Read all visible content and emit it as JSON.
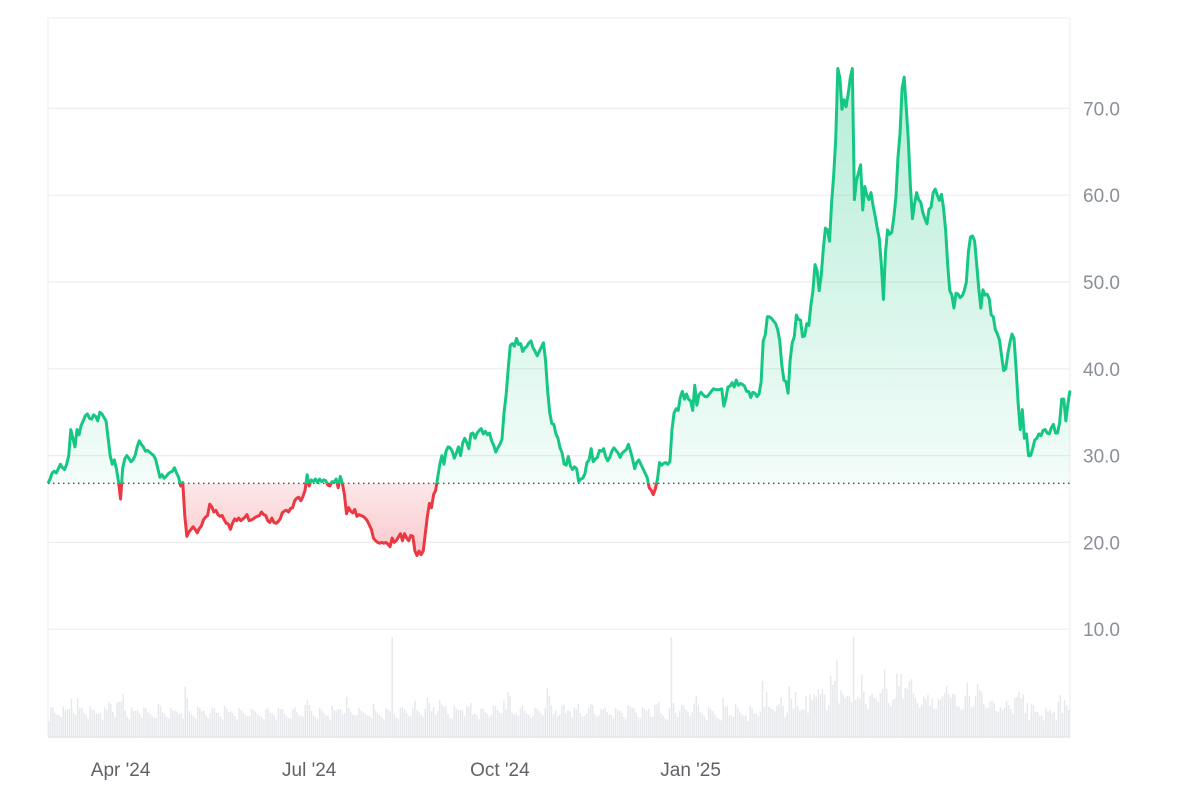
{
  "chart_data": {
    "type": "area",
    "title": "",
    "xlabel": "",
    "ylabel": "",
    "baseline": 26.8,
    "ylim": [
      0,
      80
    ],
    "y_ticks": [
      {
        "value": 10,
        "label": "10.0"
      },
      {
        "value": 20,
        "label": "20.0"
      },
      {
        "value": 30,
        "label": "30.0"
      },
      {
        "value": 40,
        "label": "40.0"
      },
      {
        "value": 50,
        "label": "50.0"
      },
      {
        "value": 60,
        "label": "60.0"
      },
      {
        "value": 70,
        "label": "70.0"
      }
    ],
    "x_ticks": [
      {
        "index": 35,
        "label": "Apr '24"
      },
      {
        "index": 126,
        "label": "Jul '24"
      },
      {
        "index": 218,
        "label": "Oct '24"
      },
      {
        "index": 310,
        "label": "Jan '25"
      }
    ],
    "colors": {
      "up": "#16c784",
      "down": "#ea3943",
      "baseline": "#555555",
      "grid": "#eeeeee",
      "volume": "#e6e8ec"
    },
    "series": [
      {
        "values": [
          26.8,
          27.3,
          28.0,
          28.2,
          28.0,
          28.5,
          29.0,
          28.6,
          28.4,
          29.0,
          30.0,
          33.0,
          32.0,
          31.0,
          33.0,
          32.4,
          33.5,
          34.0,
          34.6,
          34.8,
          34.3,
          34.2,
          34.7,
          34.5,
          34.0,
          35.0,
          34.8,
          34.4,
          34.0,
          32.0,
          30.0,
          29.0,
          29.5,
          28.5,
          27.0,
          25.0,
          28.5,
          29.6,
          30.0,
          29.7,
          29.3,
          29.5,
          30.0,
          31.0,
          31.7,
          31.3,
          31.0,
          30.5,
          30.6,
          30.4,
          30.2,
          30.0,
          29.5,
          28.5,
          27.5,
          27.8,
          27.4,
          27.6,
          27.9,
          28.1,
          28.2,
          28.6,
          28.0,
          27.5,
          26.5,
          26.9,
          23.0,
          20.7,
          21.2,
          21.5,
          21.8,
          21.5,
          21.1,
          21.6,
          21.9,
          22.6,
          22.9,
          23.1,
          24.4,
          24.1,
          23.5,
          23.7,
          23.2,
          23.0,
          23.1,
          22.6,
          22.2,
          22.1,
          21.5,
          22.2,
          22.7,
          22.5,
          22.8,
          22.5,
          22.7,
          22.9,
          23.2,
          22.5,
          22.6,
          22.7,
          22.9,
          23.0,
          23.1,
          23.5,
          23.2,
          23.1,
          22.5,
          22.3,
          22.8,
          22.3,
          22.2,
          22.4,
          22.7,
          23.4,
          23.6,
          23.7,
          23.5,
          23.9,
          24.0,
          24.8,
          25.1,
          25.2,
          24.8,
          25.3,
          26.0,
          27.8,
          26.5,
          27.2,
          27.0,
          27.3,
          26.9,
          27.3,
          27.0,
          27.2,
          27.1,
          26.6,
          26.5,
          27.0,
          26.9,
          27.3,
          26.3,
          27.6,
          26.8,
          25.5,
          23.3,
          24.0,
          23.6,
          23.4,
          23.8,
          23.0,
          23.2,
          23.1,
          23.0,
          22.8,
          22.5,
          22.0,
          21.5,
          20.5,
          20.2,
          20.0,
          19.9,
          20.0,
          19.9,
          20.0,
          19.8,
          19.5,
          20.5,
          20.0,
          20.2,
          20.6,
          21.0,
          20.2,
          21.0,
          20.5,
          20.2,
          20.8,
          20.7,
          19.0,
          18.5,
          19.0,
          18.6,
          19.0,
          21.0,
          23.0,
          24.5,
          24.0,
          25.5,
          26.0,
          27.5,
          29.0,
          30.0,
          29.0,
          30.5,
          31.0,
          30.9,
          30.5,
          29.7,
          30.3,
          31.0,
          30.0,
          31.4,
          32.0,
          31.5,
          30.8,
          32.5,
          32.6,
          32.0,
          32.6,
          32.9,
          33.1,
          32.5,
          32.8,
          32.4,
          32.6,
          31.7,
          31.2,
          30.4,
          30.9,
          31.3,
          31.9,
          35.0,
          37.0,
          40.0,
          42.7,
          42.9,
          42.6,
          43.5,
          42.8,
          42.9,
          42.0,
          42.4,
          42.6,
          43.0,
          43.2,
          42.4,
          42.0,
          41.5,
          42.0,
          42.5,
          43.0,
          41.0,
          37.5,
          35.0,
          33.7,
          33.6,
          32.5,
          32.0,
          30.9,
          30.3,
          29.0,
          28.9,
          29.9,
          28.8,
          28.4,
          28.7,
          28.5,
          27.0,
          27.3,
          27.4,
          27.9,
          29.2,
          29.5,
          30.8,
          29.3,
          29.6,
          29.8,
          30.6,
          30.5,
          30.8,
          29.9,
          29.4,
          29.8,
          30.5,
          30.9,
          30.6,
          30.3,
          29.8,
          30.3,
          30.5,
          30.7,
          31.3,
          30.5,
          29.6,
          28.5,
          29.2,
          29.5,
          29.0,
          28.5,
          28.0,
          27.5,
          26.3,
          26.0,
          25.5,
          26.2,
          27.3,
          29.2,
          28.9,
          29.1,
          29.2,
          29.0,
          29.3,
          33.0,
          34.9,
          35.4,
          35.2,
          36.7,
          37.4,
          36.5,
          37.1,
          36.5,
          36.3,
          35.2,
          38.1,
          35.8,
          37.0,
          37.3,
          37.0,
          36.8,
          36.8,
          37.1,
          37.4,
          37.7,
          37.6,
          37.6,
          37.6,
          37.7,
          35.7,
          36.6,
          37.9,
          38.0,
          38.4,
          37.9,
          38.7,
          38.1,
          38.3,
          38.2,
          38.0,
          37.4,
          37.4,
          36.7,
          37.3,
          37.2,
          36.8,
          37.1,
          38.5,
          43.2,
          43.9,
          46.0,
          46.0,
          45.8,
          45.5,
          45.2,
          44.5,
          43.2,
          40.4,
          38.7,
          38.5,
          37.2,
          41.0,
          43.0,
          43.7,
          46.2,
          45.7,
          45.6,
          43.7,
          43.8,
          45.2,
          45.0,
          47.3,
          49.0,
          52.0,
          51.3,
          49.0,
          50.8,
          53.8,
          56.2,
          56.0,
          54.7,
          59.1,
          62.3,
          66.5,
          74.6,
          73.5,
          69.9,
          71.0,
          70.2,
          71.7,
          73.5,
          74.6,
          59.5,
          61.7,
          62.6,
          63.5,
          58.3,
          61.0,
          60.0,
          59.5,
          60.3,
          58.8,
          57.6,
          56.2,
          55.0,
          52.0,
          48.0,
          53.4,
          56.0,
          55.5,
          55.7,
          57.4,
          59.7,
          64.3,
          67.1,
          72.3,
          73.6,
          70.1,
          66.4,
          61.1,
          57.3,
          59.0,
          60.3,
          59.5,
          59.2,
          58.0,
          57.3,
          56.7,
          58.4,
          58.6,
          60.3,
          60.7,
          60.0,
          59.4,
          60.1,
          58.5,
          56.0,
          52.0,
          49.0,
          48.5,
          47.0,
          48.7,
          48.6,
          48.2,
          48.4,
          49.0,
          50.0,
          53.5,
          55.2,
          55.3,
          54.7,
          52.0,
          49.2,
          47.0,
          49.1,
          48.5,
          48.6,
          48.1,
          46.2,
          46.0,
          44.5,
          44.0,
          43.3,
          41.5,
          39.8,
          40.0,
          41.7,
          43.0,
          44.0,
          43.5,
          40.0,
          36.0,
          33.0,
          35.3,
          32.0,
          32.5,
          30.0,
          30.0,
          30.8,
          31.8,
          32.0,
          32.5,
          32.3,
          32.9,
          33.0,
          32.6,
          32.5,
          33.2,
          33.6,
          32.6,
          32.6,
          33.8,
          36.5,
          36.5,
          34.0,
          36.0,
          37.5
        ]
      }
    ]
  }
}
